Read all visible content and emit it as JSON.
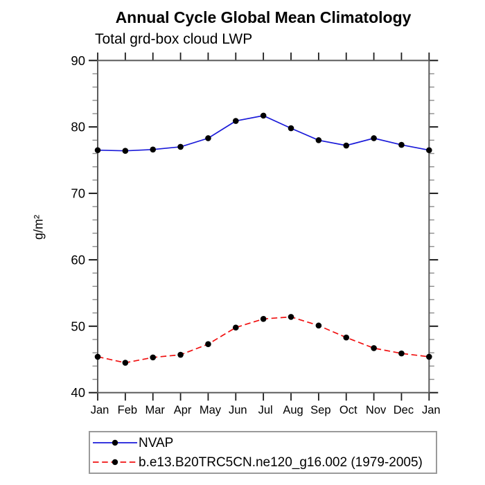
{
  "chart_data": {
    "type": "line",
    "title": "Annual Cycle Global Mean Climatology",
    "subtitle": "Total grd-box cloud LWP",
    "xlabel": "",
    "ylabel": "g/m²",
    "categories": [
      "Jan",
      "Feb",
      "Mar",
      "Apr",
      "May",
      "Jun",
      "Jul",
      "Aug",
      "Sep",
      "Oct",
      "Nov",
      "Dec",
      "Jan"
    ],
    "ylim": [
      40,
      90
    ],
    "ytick_major_step": 10,
    "ytick_minor_step": 2,
    "grid": false,
    "legend_position": "bottom-left-box",
    "series": [
      {
        "name": "NVAP",
        "color": "#1a1ad9",
        "style": "solid",
        "marker": "filled-circle",
        "values": [
          76.5,
          76.4,
          76.6,
          77.0,
          78.3,
          80.9,
          81.7,
          79.8,
          78.0,
          77.2,
          78.3,
          77.3,
          76.5
        ]
      },
      {
        "name": "b.e13.B20TRC5CN.ne120_g16.002 (1979-2005)",
        "color": "#f01010",
        "style": "dashed",
        "marker": "filled-circle",
        "values": [
          45.4,
          44.5,
          45.3,
          45.7,
          47.3,
          49.8,
          51.1,
          51.4,
          50.1,
          48.3,
          46.7,
          45.9,
          45.4
        ]
      }
    ]
  },
  "colors": {
    "frame": "#5a5a5a",
    "tick_major": "#1c1c1c",
    "tick_minor": "#8c8c8c",
    "marker": "#000000",
    "text": "#000000",
    "legend_border": "#9a9a9a"
  }
}
